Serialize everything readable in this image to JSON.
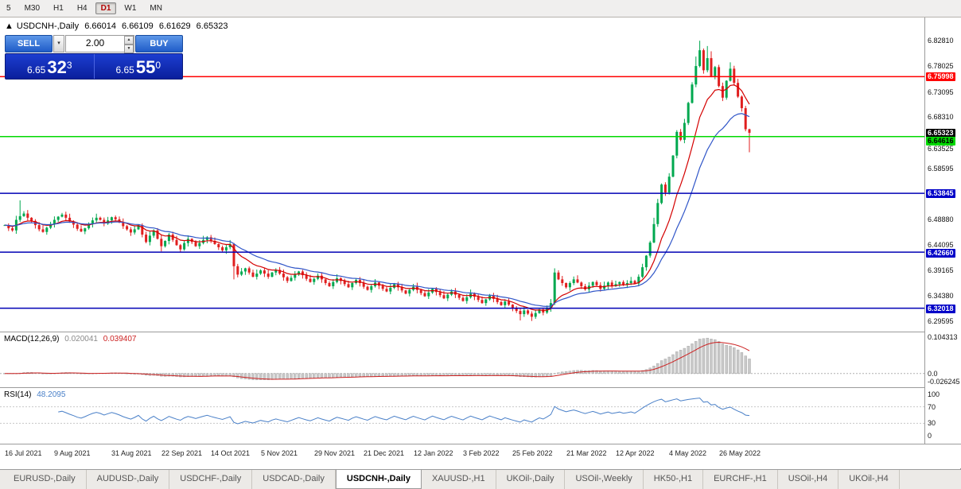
{
  "toolbar": {
    "timeframes": [
      "5",
      "M30",
      "H1",
      "H4",
      "D1",
      "W1",
      "MN"
    ],
    "active": "D1"
  },
  "chart_header": {
    "icon": "▲",
    "title": "USDCNH-,Daily",
    "open": "6.66014",
    "high": "6.66109",
    "low": "6.61629",
    "close": "6.65323"
  },
  "trade_panel": {
    "sell_label": "SELL",
    "buy_label": "BUY",
    "lot_value": "2.00",
    "dropdown_icon": "▾",
    "spin_up_icon": "▲",
    "spin_down_icon": "▼",
    "sell_price_big": "6.65",
    "sell_price_pips": "32",
    "sell_price_point": "3",
    "buy_price_big": "6.65",
    "buy_price_pips": "55",
    "buy_price_point": "0"
  },
  "macd_label": {
    "name": "MACD(12,26,9)",
    "value_main": "0.020041",
    "value_signal": "0.039407"
  },
  "rsi_label": {
    "name": "RSI(14)",
    "value": "48.2095"
  },
  "price_axis": {
    "ticks": [
      "6.82810",
      "6.78025",
      "6.73095",
      "6.68310",
      "6.63525",
      "6.58595",
      "6.48880",
      "6.44095",
      "6.39165",
      "6.34380",
      "6.29595"
    ],
    "markers": [
      {
        "value": "6.75998",
        "bg": "#ff0000",
        "fg": "#ffffff"
      },
      {
        "value": "6.65323",
        "bg": "#000000",
        "fg": "#ffffff"
      },
      {
        "value": "6.64616",
        "bg": "#00d800",
        "fg": "#000000"
      },
      {
        "value": "6.53845",
        "bg": "#0000c8",
        "fg": "#ffffff"
      },
      {
        "value": "6.42660",
        "bg": "#0000c8",
        "fg": "#ffffff"
      },
      {
        "value": "6.32018",
        "bg": "#0000c8",
        "fg": "#ffffff"
      }
    ]
  },
  "macd_axis": [
    "0.104313",
    "0.0",
    "-0.026245"
  ],
  "rsi_axis": [
    "100",
    "70",
    "30",
    "0"
  ],
  "date_axis": [
    {
      "label": "16 Jul 2021",
      "i": 0
    },
    {
      "label": "9 Aug 2021",
      "i": 13
    },
    {
      "label": "31 Aug 2021",
      "i": 28
    },
    {
      "label": "22 Sep 2021",
      "i": 41
    },
    {
      "label": "14 Oct 2021",
      "i": 54
    },
    {
      "label": "5 Nov 2021",
      "i": 67
    },
    {
      "label": "29 Nov 2021",
      "i": 81
    },
    {
      "label": "21 Dec 2021",
      "i": 94
    },
    {
      "label": "12 Jan 2022",
      "i": 107
    },
    {
      "label": "3 Feb 2022",
      "i": 120
    },
    {
      "label": "25 Feb 2022",
      "i": 133
    },
    {
      "label": "21 Mar 2022",
      "i": 147
    },
    {
      "label": "12 Apr 2022",
      "i": 160
    },
    {
      "label": "4 May 2022",
      "i": 174
    },
    {
      "label": "26 May 2022",
      "i": 187
    }
  ],
  "tabs": {
    "items": [
      "EURUSD-,Daily",
      "AUDUSD-,Daily",
      "USDCHF-,Daily",
      "USDCAD-,Daily",
      "USDCNH-,Daily",
      "XAUUSD-,H1",
      "UKOil-,Daily",
      "USOil-,Weekly",
      "HK50-,H1",
      "EURCHF-,H1",
      "USOil-,H4",
      "UKOil-,H4"
    ],
    "active_index": 4
  },
  "chart_data": {
    "type": "candlestick",
    "symbol": "USDCNH-",
    "timeframe": "Daily",
    "ohlc_current": {
      "open": 6.66014,
      "high": 6.66109,
      "low": 6.61629,
      "close": 6.65323
    },
    "y_range": [
      6.288,
      6.845
    ],
    "closes": [
      6.478,
      6.472,
      6.468,
      6.488,
      6.495,
      6.5,
      6.492,
      6.486,
      6.478,
      6.47,
      6.465,
      6.473,
      6.48,
      6.488,
      6.494,
      6.498,
      6.492,
      6.485,
      6.479,
      6.471,
      6.466,
      6.472,
      6.48,
      6.487,
      6.492,
      6.488,
      6.481,
      6.487,
      6.493,
      6.489,
      6.483,
      6.476,
      6.47,
      6.464,
      6.47,
      6.478,
      6.46,
      6.446,
      6.458,
      6.468,
      6.452,
      6.438,
      6.448,
      6.46,
      6.45,
      6.44,
      6.432,
      6.444,
      6.452,
      6.446,
      6.438,
      6.444,
      6.45,
      6.455,
      6.448,
      6.442,
      6.436,
      6.43,
      6.436,
      6.442,
      6.4,
      6.384,
      6.39,
      6.396,
      6.388,
      6.38,
      6.386,
      6.392,
      6.386,
      6.38,
      6.388,
      6.393,
      6.386,
      6.379,
      6.372,
      6.378,
      6.384,
      6.39,
      6.383,
      6.376,
      6.37,
      6.376,
      6.382,
      6.375,
      6.368,
      6.362,
      6.37,
      6.377,
      6.372,
      6.366,
      6.36,
      6.368,
      6.374,
      6.368,
      6.361,
      6.355,
      6.362,
      6.369,
      6.363,
      6.357,
      6.352,
      6.359,
      6.366,
      6.36,
      6.354,
      6.348,
      6.355,
      6.361,
      6.355,
      6.349,
      6.343,
      6.35,
      6.357,
      6.351,
      6.345,
      6.339,
      6.346,
      6.352,
      6.346,
      6.34,
      6.334,
      6.341,
      6.348,
      6.342,
      6.336,
      6.33,
      6.337,
      6.344,
      6.338,
      6.332,
      6.326,
      6.333,
      6.327,
      6.321,
      6.315,
      6.309,
      6.316,
      6.31,
      6.304,
      6.311,
      6.318,
      6.312,
      6.32,
      6.33,
      6.388,
      6.375,
      6.368,
      6.36,
      6.368,
      6.375,
      6.369,
      6.362,
      6.356,
      6.363,
      6.37,
      6.364,
      6.357,
      6.363,
      6.369,
      6.362,
      6.366,
      6.37,
      6.365,
      6.368,
      6.372,
      6.367,
      6.38,
      6.398,
      6.42,
      6.445,
      6.48,
      6.52,
      6.555,
      6.54,
      6.57,
      6.61,
      6.655,
      6.64,
      6.672,
      6.71,
      6.745,
      6.78,
      6.81,
      6.772,
      6.795,
      6.76,
      6.778,
      6.742,
      6.72,
      6.752,
      6.775,
      6.748,
      6.722,
      6.7,
      6.66,
      6.6532
    ],
    "wick_overrides": {
      "4": {
        "h": 6.525
      },
      "41": {
        "l": 6.428
      },
      "60": {
        "l": 6.375
      },
      "135": {
        "l": 6.297
      },
      "138": {
        "l": 6.296
      },
      "144": {
        "h": 6.396
      },
      "170": {
        "h": 6.492
      },
      "181": {
        "h": 6.798
      },
      "182": {
        "h": 6.8281
      },
      "184": {
        "h": 6.818
      },
      "185": {
        "h": 6.808
      },
      "190": {
        "h": 6.787
      },
      "195": {
        "h": 6.6611,
        "l": 6.6163
      }
    },
    "colors": {
      "up": "#00a84f",
      "down": "#e01f1f"
    },
    "moving_averages": [
      {
        "period": 10,
        "color": "#d40000"
      },
      {
        "period": 21,
        "color": "#2f55c8"
      }
    ],
    "hlines": [
      {
        "price": 6.75998,
        "color": "#ff0000"
      },
      {
        "price": 6.64616,
        "color": "#00d800"
      },
      {
        "price": 6.53845,
        "color": "#0000b4"
      },
      {
        "price": 6.4266,
        "color": "#0000b4"
      },
      {
        "price": 6.32018,
        "color": "#0000b4"
      }
    ],
    "macd": {
      "fast": 12,
      "slow": 26,
      "signal": 9,
      "histogram_color": "#c8c8c8",
      "signal_color": "#cc2222"
    },
    "rsi": {
      "period": 14,
      "color": "#4a80c8",
      "levels": [
        70,
        30
      ]
    }
  }
}
